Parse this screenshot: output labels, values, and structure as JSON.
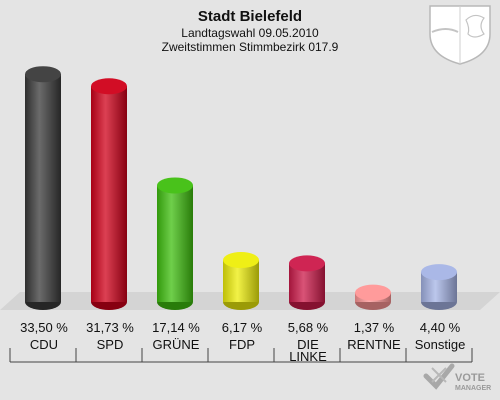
{
  "header": {
    "title": "Stadt Bielefeld",
    "subtitle1": "Landtagswahl 09.05.2010",
    "subtitle2": "Zweitstimmen Stimmbezirk 017.9"
  },
  "logo": {
    "text": "VOTE",
    "subtext": "MANAGER"
  },
  "chart_data": {
    "type": "bar",
    "title": "Stadt Bielefeld",
    "subtitle": "Landtagswahl 09.05.2010 · Zweitstimmen Stimmbezirk 017.9",
    "categories": [
      "CDU",
      "SPD",
      "GRÜNE",
      "FDP",
      "DIE LINKE",
      "RENTNE",
      "Sonstige"
    ],
    "category_lines": [
      [
        "CDU"
      ],
      [
        "SPD"
      ],
      [
        "GRÜNE"
      ],
      [
        "FDP"
      ],
      [
        "DIE",
        "LINKE"
      ],
      [
        "RENTNE"
      ],
      [
        "Sonstige"
      ]
    ],
    "values": [
      33.5,
      31.73,
      17.14,
      6.17,
      5.68,
      1.37,
      4.4
    ],
    "labels": [
      "33,50 %",
      "31,73 %",
      "17,14 %",
      "6,17 %",
      "5,68 %",
      "1,37 %",
      "4,40 %"
    ],
    "colors": [
      "#3a3a3a",
      "#d0001a",
      "#3fbf0f",
      "#eeee0a",
      "#cc1a4a",
      "#ff9696",
      "#a6b4e6"
    ],
    "ylim": [
      0,
      35
    ],
    "grid": false,
    "legend": "none"
  }
}
